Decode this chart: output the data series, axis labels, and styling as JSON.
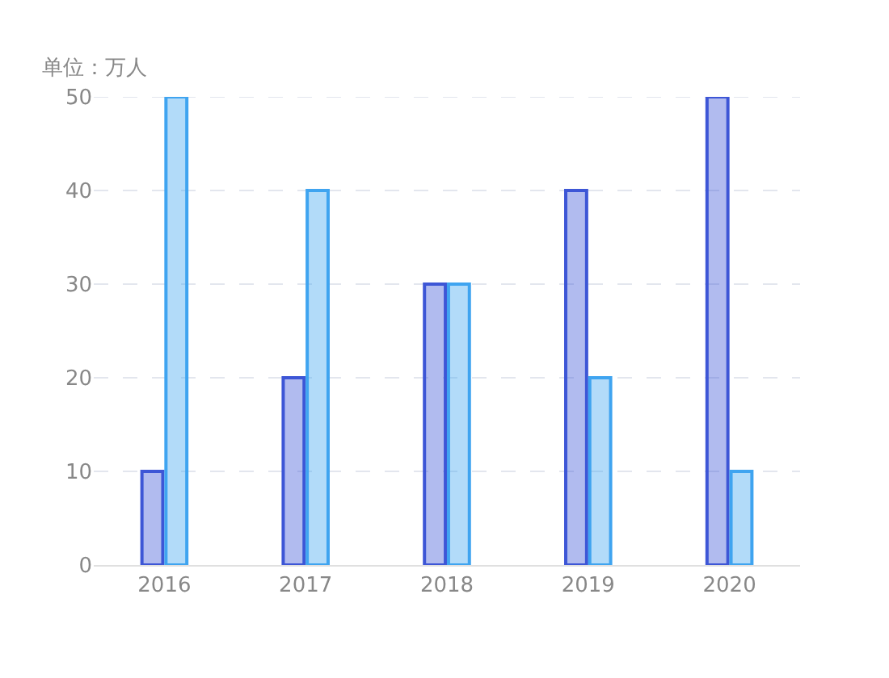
{
  "chart_data": {
    "type": "bar",
    "ylabel": "单位：万人",
    "categories": [
      "2016",
      "2017",
      "2018",
      "2019",
      "2020"
    ],
    "series": [
      {
        "color": "#3d56d6",
        "values": [
          10,
          20,
          30,
          40,
          50
        ]
      },
      {
        "color": "#3fa4f0",
        "values": [
          50,
          40,
          30,
          20,
          10
        ]
      }
    ],
    "ylim": [
      0,
      50
    ],
    "yticks": [
      0,
      10,
      20,
      30,
      40,
      50
    ],
    "grid": "y"
  }
}
